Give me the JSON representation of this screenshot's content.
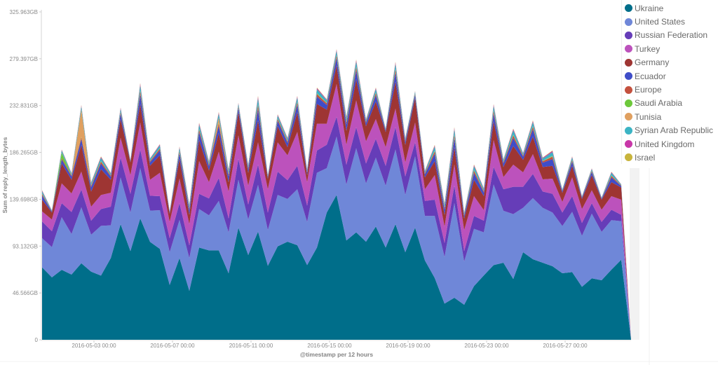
{
  "chart_data": {
    "type": "area",
    "stacked": true,
    "title": "",
    "xlabel": "@timestamp per 12 hours",
    "ylabel": "Sum of reply_length_bytes",
    "ylim": [
      0,
      325.963
    ],
    "y_unit": "GB",
    "y_ticks": [
      "0",
      "46.566GB",
      "93.132GB",
      "139.698GB",
      "186.265GB",
      "232.831GB",
      "279.397GB",
      "325.963GB"
    ],
    "x_ticks": [
      "2016-05-03 00:00",
      "2016-05-07 00:00",
      "2016-05-11 00:00",
      "2016-05-15 00:00",
      "2016-05-19 00:00",
      "2016-05-23 00:00",
      "2016-05-27 00:00"
    ],
    "legend_position": "top-right",
    "grid": false,
    "x": [
      "2016-04-30 12:00",
      "2016-05-01 00:00",
      "2016-05-01 12:00",
      "2016-05-02 00:00",
      "2016-05-02 12:00",
      "2016-05-03 00:00",
      "2016-05-03 12:00",
      "2016-05-04 00:00",
      "2016-05-04 12:00",
      "2016-05-05 00:00",
      "2016-05-05 12:00",
      "2016-05-06 00:00",
      "2016-05-06 12:00",
      "2016-05-07 00:00",
      "2016-05-07 12:00",
      "2016-05-08 00:00",
      "2016-05-08 12:00",
      "2016-05-09 00:00",
      "2016-05-09 12:00",
      "2016-05-10 00:00",
      "2016-05-10 12:00",
      "2016-05-11 00:00",
      "2016-05-11 12:00",
      "2016-05-12 00:00",
      "2016-05-12 12:00",
      "2016-05-13 00:00",
      "2016-05-13 12:00",
      "2016-05-14 00:00",
      "2016-05-14 12:00",
      "2016-05-15 00:00",
      "2016-05-15 12:00",
      "2016-05-16 00:00",
      "2016-05-16 12:00",
      "2016-05-17 00:00",
      "2016-05-17 12:00",
      "2016-05-18 00:00",
      "2016-05-18 12:00",
      "2016-05-19 00:00",
      "2016-05-19 12:00",
      "2016-05-20 00:00",
      "2016-05-20 12:00",
      "2016-05-21 00:00",
      "2016-05-21 12:00",
      "2016-05-22 00:00",
      "2016-05-22 12:00",
      "2016-05-23 00:00",
      "2016-05-23 12:00",
      "2016-05-24 00:00",
      "2016-05-24 12:00",
      "2016-05-25 00:00",
      "2016-05-25 12:00",
      "2016-05-26 00:00",
      "2016-05-26 12:00",
      "2016-05-27 00:00",
      "2016-05-27 12:00",
      "2016-05-28 00:00",
      "2016-05-28 12:00",
      "2016-05-29 00:00",
      "2016-05-29 12:00",
      "2016-05-30 00:00",
      "2016-05-30 12:00"
    ],
    "series": [
      {
        "name": "Ukraine",
        "color": "#006e8a",
        "values": [
          72.0,
          62.1,
          69.6,
          64.9,
          76.1,
          67.7,
          63.8,
          81.2,
          114.9,
          88.2,
          120.7,
          97.3,
          90.4,
          54.5,
          81.2,
          48.7,
          91.7,
          88.9,
          88.9,
          66.2,
          111.4,
          84.3,
          107.5,
          73.6,
          92.9,
          97.5,
          94.0,
          74.3,
          91.7,
          126.5,
          144.0,
          98.7,
          106.8,
          97.5,
          112.6,
          91.7,
          114.9,
          87.1,
          111.4,
          78.9,
          61.5,
          36.0,
          41.8,
          34.8,
          53.4,
          64.0,
          74.3,
          76.6,
          60.4,
          87.1,
          80.1,
          76.6,
          73.1,
          66.2,
          67.3,
          52.7,
          61.1,
          59.2,
          69.7,
          79.6,
          0
        ]
      },
      {
        "name": "United States",
        "color": "#6f87d8",
        "values": [
          29.0,
          30.0,
          52.3,
          40.3,
          55.5,
          36.8,
          49.5,
          32.6,
          46.4,
          38.3,
          49.9,
          31.1,
          38.4,
          32.6,
          37.9,
          32.5,
          38.3,
          34.8,
          49.2,
          40.6,
          47.6,
          35.3,
          46.4,
          35.5,
          51.1,
          42.5,
          55.7,
          42.9,
          74.3,
          44.1,
          58.0,
          55.7,
          83.6,
          58.0,
          68.5,
          61.5,
          74.3,
          56.9,
          70.9,
          44.2,
          61.6,
          46.4,
          94.0,
          43.0,
          56.9,
          42.8,
          80.1,
          51.6,
          64.5,
          44.1,
          60.8,
          54.6,
          53.4,
          46.9,
          59.9,
          50.6,
          64.3,
          48.1,
          49.2,
          38.3,
          0
        ]
      },
      {
        "name": "Russian Federation",
        "color": "#663db8",
        "values": [
          16.7,
          15.9,
          13.9,
          21.8,
          17.7,
          13.9,
          16.7,
          18.5,
          19.8,
          18.6,
          18.6,
          14.8,
          14.0,
          13.9,
          16.7,
          12.8,
          15.1,
          16.8,
          22.8,
          13.9,
          20.9,
          15.0,
          20.2,
          17.4,
          23.2,
          18.6,
          23.2,
          16.3,
          22.1,
          23.3,
          19.7,
          19.7,
          20.9,
          19.8,
          18.6,
          19.7,
          22.1,
          18.5,
          13.9,
          15.0,
          16.2,
          13.9,
          17.4,
          10.4,
          12.8,
          11.6,
          17.4,
          21.5,
          27.2,
          20.9,
          24.0,
          16.2,
          18.6,
          13.4,
          15.6,
          12.8,
          10.4,
          9.9,
          10.4,
          6.3,
          0
        ]
      },
      {
        "name": "Turkey",
        "color": "#bc52bc",
        "values": [
          9.9,
          11.5,
          19.7,
          18.5,
          17.9,
          13.9,
          13.9,
          13.9,
          19.7,
          18.6,
          26.7,
          15.9,
          23.2,
          16.2,
          24.4,
          20.9,
          32.5,
          16.2,
          26.0,
          26.7,
          23.2,
          18.6,
          22.1,
          23.2,
          29.0,
          24.8,
          33.7,
          23.2,
          26.7,
          20.9,
          32.5,
          19.8,
          26.7,
          22.0,
          19.7,
          18.6,
          18.5,
          13.9,
          19.7,
          11.6,
          24.4,
          16.3,
          20.9,
          20.9,
          19.7,
          10.5,
          26.7,
          12.1,
          22.0,
          14.4,
          19.7,
          12.1,
          15.1,
          10.5,
          18.6,
          13.9,
          12.8,
          12.1,
          13.5,
          15.1,
          0
        ]
      },
      {
        "name": "Germany",
        "color": "#9e3533",
        "values": [
          11.7,
          7.0,
          19.8,
          13.6,
          26.7,
          15.1,
          25.6,
          12.9,
          18.6,
          12.7,
          18.6,
          13.9,
          17.4,
          8.2,
          19.7,
          9.3,
          20.9,
          11.6,
          18.6,
          9.3,
          23.3,
          12.8,
          22.0,
          10.5,
          16.2,
          8.1,
          19.8,
          7.0,
          19.7,
          13.9,
          18.6,
          13.9,
          20.9,
          15.1,
          17.4,
          15.1,
          26.7,
          17.5,
          24.4,
          11.7,
          13.9,
          11.6,
          17.4,
          11.6,
          16.2,
          13.9,
          18.6,
          10.0,
          18.6,
          12.3,
          17.4,
          12.3,
          12.7,
          9.3,
          11.5,
          10.0,
          15.1,
          10.0,
          13.9,
          12.1,
          0
        ]
      },
      {
        "name": "Ecuador",
        "color": "#3f4dc8",
        "values": [
          4.2,
          1.0,
          4.0,
          3.1,
          5.6,
          4.2,
          5.7,
          3.1,
          5.2,
          1.0,
          9.4,
          3.4,
          5.0,
          1.0,
          5.5,
          4.7,
          7.8,
          4.2,
          7.2,
          5.8,
          4.1,
          3.6,
          11.0,
          1.6,
          5.3,
          4.2,
          7.3,
          2.6,
          7.3,
          4.7,
          7.3,
          6.3,
          8.9,
          3.2,
          6.3,
          1.6,
          8.9,
          3.1,
          3.2,
          3.1,
          7.3,
          5.2,
          8.9,
          2.6,
          6.8,
          3.6,
          7.8,
          3.5,
          7.8,
          3.2,
          7.3,
          4.2,
          6.8,
          1.5,
          4.2,
          1.3,
          3.1,
          1.0,
          4.7,
          1.4,
          0
        ]
      },
      {
        "name": "Europe",
        "color": "#c4513e",
        "values": [
          1.4,
          0.3,
          1.3,
          1.0,
          1.9,
          1.4,
          1.9,
          1.0,
          1.7,
          0.3,
          3.1,
          1.1,
          1.7,
          0.3,
          1.8,
          1.6,
          2.6,
          1.4,
          2.4,
          1.9,
          1.4,
          1.2,
          3.7,
          0.5,
          1.8,
          1.4,
          2.4,
          0.9,
          2.4,
          1.6,
          2.4,
          2.1,
          3.0,
          1.1,
          2.1,
          0.5,
          3.0,
          1.0,
          1.1,
          1.0,
          2.4,
          1.7,
          3.0,
          0.9,
          2.3,
          1.2,
          2.6,
          1.2,
          2.6,
          1.1,
          2.4,
          1.4,
          2.3,
          0.5,
          1.4,
          0.4,
          1.0,
          0.3,
          1.6,
          0.5,
          0
        ]
      },
      {
        "name": "Saudi Arabia",
        "color": "#6dc83b",
        "values": [
          0.3,
          0.1,
          5.3,
          0.2,
          0.4,
          0.3,
          0.4,
          0.2,
          0.3,
          0.1,
          0.6,
          0.2,
          0.3,
          0.1,
          0.4,
          0.3,
          0.5,
          0.3,
          0.5,
          0.4,
          0.3,
          0.2,
          0.7,
          0.1,
          0.4,
          0.3,
          0.5,
          0.2,
          0.5,
          0.3,
          0.5,
          0.4,
          0.6,
          0.2,
          0.4,
          0.1,
          0.6,
          0.2,
          0.2,
          0.2,
          0.5,
          0.3,
          0.6,
          0.2,
          0.5,
          0.2,
          0.5,
          0.2,
          0.5,
          0.2,
          0.5,
          0.3,
          0.5,
          0.1,
          0.3,
          0.1,
          0.2,
          0.1,
          0.3,
          0.1,
          0
        ]
      },
      {
        "name": "Tunisia",
        "color": "#e0a060",
        "values": [
          0.2,
          0,
          0.2,
          0.1,
          27.3,
          0.2,
          0.3,
          0.1,
          0.2,
          0,
          0.4,
          0.2,
          0.2,
          0,
          0.2,
          0.2,
          0.3,
          0.2,
          5.3,
          0.3,
          0.2,
          0.2,
          0.5,
          0.1,
          0.2,
          0.2,
          0.3,
          0.1,
          0.3,
          0.2,
          0.3,
          0.3,
          0.4,
          0.1,
          0.3,
          0.1,
          0.4,
          0.1,
          0.1,
          0.1,
          0.3,
          0.2,
          0.4,
          0.1,
          0.3,
          0.2,
          0.3,
          0.2,
          0.3,
          0.1,
          0.3,
          0.2,
          0.3,
          0.1,
          0.2,
          0.1,
          0.1,
          0,
          0.2,
          0.1,
          0
        ]
      },
      {
        "name": "Syrian Arab Republic",
        "color": "#3cb4c4",
        "values": [
          2.3,
          0.6,
          2.2,
          1.7,
          3.1,
          2.3,
          3.2,
          1.7,
          2.9,
          0.6,
          5.2,
          1.9,
          2.8,
          0.6,
          3.1,
          2.6,
          4.4,
          2.3,
          4.0,
          3.2,
          2.3,
          2.0,
          6.1,
          0.9,
          2.9,
          2.3,
          4.1,
          1.5,
          4.1,
          2.6,
          4.1,
          3.5,
          4.9,
          1.8,
          3.5,
          0.9,
          5.0,
          1.7,
          1.8,
          1.7,
          4.1,
          2.9,
          5.0,
          1.5,
          3.8,
          2.0,
          4.4,
          1.9,
          4.4,
          1.8,
          4.1,
          2.3,
          3.8,
          0.9,
          2.4,
          0.7,
          1.7,
          0.6,
          2.6,
          0.8,
          0
        ]
      },
      {
        "name": "United Kingdom",
        "color": "#c837a8",
        "values": [
          0.7,
          0.2,
          0.6,
          0.5,
          0.9,
          0.7,
          0.9,
          0.5,
          0.8,
          0.2,
          1.5,
          0.5,
          0.8,
          0.2,
          0.9,
          0.7,
          1.2,
          0.7,
          1.1,
          0.9,
          0.6,
          0.6,
          1.7,
          0.2,
          0.8,
          0.7,
          1.1,
          0.4,
          1.1,
          0.7,
          1.1,
          1.0,
          1.4,
          0.5,
          1.0,
          0.2,
          1.4,
          0.5,
          0.5,
          0.5,
          1.1,
          0.8,
          1.4,
          0.4,
          1.1,
          0.6,
          1.2,
          0.5,
          1.2,
          0.5,
          1.1,
          0.7,
          1.1,
          0.2,
          0.7,
          0.2,
          0.5,
          0.2,
          0.7,
          0.2,
          0
        ]
      },
      {
        "name": "Israel",
        "color": "#c8b43c",
        "values": [
          0.3,
          0.1,
          0.3,
          0.2,
          0.4,
          0.3,
          0.4,
          0.2,
          0.3,
          0.1,
          0.6,
          0.2,
          0.3,
          0.1,
          0.4,
          0.3,
          0.5,
          0.3,
          0.5,
          0.4,
          0.3,
          0.2,
          0.7,
          0.1,
          0.4,
          0.3,
          0.5,
          0.2,
          0.5,
          0.3,
          0.5,
          0.4,
          0.6,
          0.2,
          0.4,
          0.1,
          0.6,
          0.2,
          0.2,
          0.2,
          0.5,
          0.3,
          0.6,
          0.2,
          0.5,
          0.2,
          0.5,
          0.2,
          0.5,
          0.2,
          0.5,
          0.3,
          0.5,
          0.1,
          0.3,
          0.1,
          0.2,
          0.1,
          0.3,
          0.1,
          0
        ]
      }
    ]
  }
}
